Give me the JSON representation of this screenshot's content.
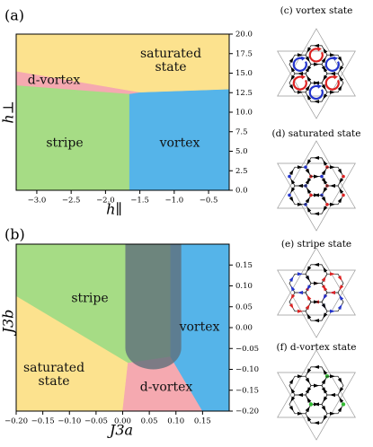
{
  "chart_data": [
    {
      "type": "phase-diagram",
      "title": "(a)",
      "x_label": "h∥",
      "y_label": "h⊥",
      "y_axis_side": "right",
      "xlim": [
        -3.3,
        -0.2
      ],
      "ylim": [
        0,
        20
      ],
      "xticks": [
        {
          "value": -3.0,
          "label": "−3.0"
        },
        {
          "value": -2.5,
          "label": "−2.5"
        },
        {
          "value": -2.0,
          "label": "−2.0"
        },
        {
          "value": -1.5,
          "label": "−1.5"
        },
        {
          "value": -1.0,
          "label": "−1.0"
        },
        {
          "value": -0.5,
          "label": "−0.5"
        }
      ],
      "yticks": [
        {
          "value": 0,
          "label": "0.0"
        },
        2.5,
        {
          "value": 5,
          "label": "5.0"
        },
        7.5,
        {
          "value": 10,
          "label": "10.0"
        },
        12.5,
        {
          "value": 15,
          "label": "15.0"
        },
        17.5,
        {
          "value": 20,
          "label": "20.0"
        }
      ],
      "regions": [
        {
          "name": "saturated state",
          "color": "#fce28e",
          "x": [
            -3.3,
            -0.2,
            -0.2,
            -3.3
          ],
          "y": [
            20,
            20,
            0,
            0
          ]
        },
        {
          "name": "d-vortex",
          "color": "#f5a9b0",
          "x": [
            -3.3,
            -1.5,
            -1.65,
            -3.3
          ],
          "y": [
            15.2,
            12.5,
            12.3,
            13.4
          ]
        },
        {
          "name": "stripe",
          "color": "#a6dc85",
          "x": [
            -3.3,
            -1.65,
            -1.65,
            -3.3
          ],
          "y": [
            13.4,
            12.3,
            0,
            0
          ]
        },
        {
          "name": "vortex",
          "color": "#55b4e9",
          "x": [
            -1.65,
            -1.5,
            -0.2,
            -0.2,
            -1.65
          ],
          "y": [
            12.3,
            12.5,
            12.9,
            0,
            0
          ]
        }
      ]
    },
    {
      "type": "phase-diagram",
      "title": "(b)",
      "x_label": "J3a",
      "y_label": "J3b",
      "y_axis_side": "right",
      "xlim": [
        -0.2,
        0.2
      ],
      "ylim": [
        -0.2,
        0.2
      ],
      "xticks": [
        {
          "value": -0.2,
          "label": "−0.20"
        },
        {
          "value": -0.15,
          "label": "−0.15"
        },
        {
          "value": -0.1,
          "label": "−0.10"
        },
        {
          "value": -0.05,
          "label": "−0.05"
        },
        {
          "value": 0,
          "label": "0.00"
        },
        0.05,
        {
          "value": 0.1,
          "label": "0.10"
        },
        0.15
      ],
      "yticks": [
        {
          "value": -0.2,
          "label": "−0.20"
        },
        {
          "value": -0.15,
          "label": "−0.15"
        },
        {
          "value": -0.1,
          "label": "−0.10"
        },
        {
          "value": -0.05,
          "label": "−0.05"
        },
        {
          "value": 0,
          "label": "0.00"
        },
        0.05,
        {
          "value": 0.1,
          "label": "0.10"
        },
        0.15
      ],
      "regions": [
        {
          "name": "stripe",
          "color": "#a6dc85",
          "x": [
            -0.2,
            0.2,
            0.2,
            -0.2
          ],
          "y": [
            0.2,
            0.2,
            -0.2,
            -0.2
          ]
        },
        {
          "name": "saturated state",
          "color": "#fce28e",
          "x": [
            -0.2,
            0.01,
            0.0,
            -0.2
          ],
          "y": [
            0.075,
            -0.085,
            -0.2,
            -0.2
          ]
        },
        {
          "name": "d-vortex",
          "color": "#f5a9b0",
          "x": [
            0.01,
            0.09,
            0.15,
            0.0
          ],
          "y": [
            -0.085,
            -0.07,
            -0.2,
            -0.2
          ]
        },
        {
          "name": "vortex",
          "color": "#55b4e9",
          "x": [
            0.09,
            0.2,
            0.2,
            0.15,
            0.09
          ],
          "y": [
            0.2,
            0.2,
            -0.2,
            -0.2,
            -0.07
          ]
        }
      ],
      "overlay": {
        "x": [
          0.005,
          0.11
        ],
        "ymin": -0.1,
        "color": "#5f6f7a"
      }
    }
  ],
  "insets": [
    {
      "caption": "(c) vortex state"
    },
    {
      "caption": "(d) saturated state"
    },
    {
      "caption": "(e) stripe state"
    },
    {
      "caption": "(f) d-vortex state"
    }
  ]
}
